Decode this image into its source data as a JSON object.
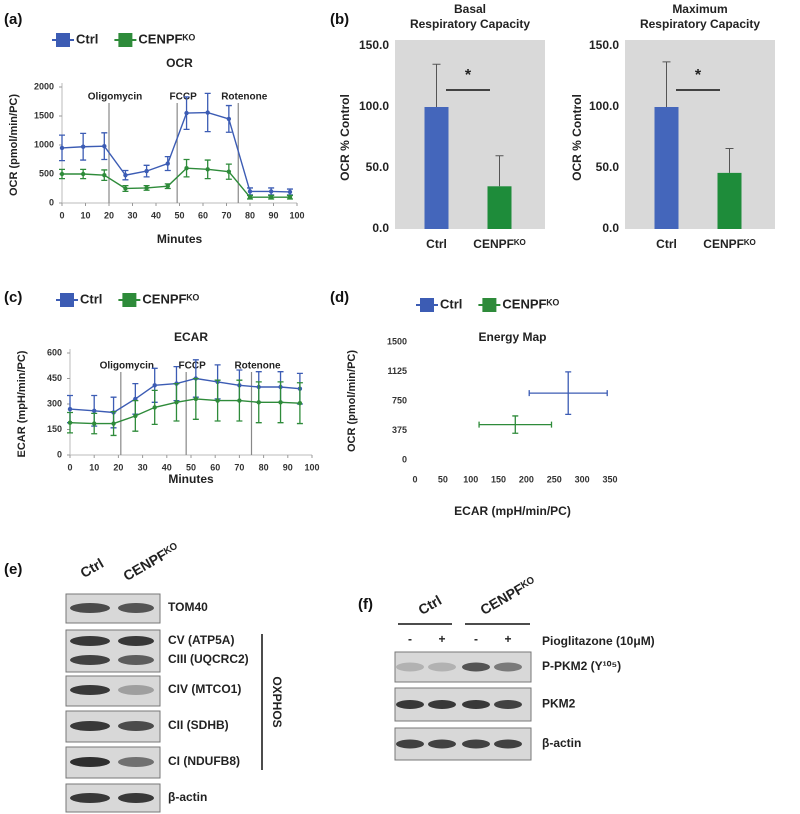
{
  "panels": [
    "(a)",
    "(b)",
    "(c)",
    "(d)",
    "(e)",
    "(f)"
  ],
  "chart_data": [
    {
      "type": "line",
      "title": "OCR",
      "xlabel": "Minutes",
      "ylabel": "OCR (pmol/min/PC)",
      "x": [
        0,
        9,
        18,
        27,
        36,
        45,
        53,
        62,
        71,
        80,
        89,
        97
      ],
      "xlim": [
        0,
        100
      ],
      "xticks": [
        0,
        10,
        20,
        30,
        40,
        50,
        60,
        70,
        80,
        90,
        100
      ],
      "ylim": [
        0,
        2000
      ],
      "yticks": [
        0,
        500,
        1000,
        1500,
        2000
      ],
      "annotations": [
        {
          "text": "Oligomycin",
          "x": 20
        },
        {
          "text": "FCCP",
          "x": 49
        },
        {
          "text": "Rotenone",
          "x": 75
        }
      ],
      "series": [
        {
          "name": "Ctrl",
          "color": "#3c5cb4",
          "values": [
            950,
            970,
            980,
            480,
            550,
            680,
            1550,
            1560,
            1450,
            200,
            200,
            190
          ],
          "errors": [
            220,
            230,
            230,
            80,
            100,
            120,
            280,
            330,
            230,
            60,
            60,
            50
          ]
        },
        {
          "name": "CENPFᴷᴼ",
          "color": "#2e8b3a",
          "values": [
            500,
            500,
            480,
            250,
            260,
            290,
            600,
            580,
            540,
            100,
            100,
            100
          ],
          "errors": [
            80,
            80,
            90,
            50,
            40,
            40,
            150,
            160,
            130,
            30,
            30,
            30
          ]
        }
      ]
    },
    {
      "type": "bar",
      "title": [
        "Basal",
        "Respiratory Capacity"
      ],
      "ylabel": "OCR % Control",
      "categories": [
        "Ctrl",
        "CENPFᴷᴼ"
      ],
      "values": [
        100,
        35
      ],
      "errors": [
        35,
        25
      ],
      "colors": [
        "#4466bb",
        "#1e8c3a"
      ],
      "ylim": [
        0,
        150
      ],
      "yticks": [
        {
          "value": 0,
          "label": "0.0"
        },
        {
          "value": 50,
          "label": "50.0"
        },
        {
          "value": 100,
          "label": "100.0"
        },
        {
          "value": 150,
          "label": "150.0"
        }
      ],
      "annotations": [
        {
          "text": "*"
        }
      ]
    },
    {
      "type": "bar",
      "title": [
        "Maximum",
        "Respiratory Capacity"
      ],
      "ylabel": "OCR % Control",
      "categories": [
        "Ctrl",
        "CENPFᴷᴼ"
      ],
      "values": [
        100,
        46
      ],
      "errors": [
        37,
        20
      ],
      "colors": [
        "#4466bb",
        "#1e8c3a"
      ],
      "ylim": [
        0,
        150
      ],
      "yticks": [
        {
          "value": 0,
          "label": "0.0"
        },
        {
          "value": 50,
          "label": "50.0"
        },
        {
          "value": 100,
          "label": "100.0"
        },
        {
          "value": 150,
          "label": "150.0"
        }
      ],
      "annotations": [
        {
          "text": "*"
        }
      ]
    },
    {
      "type": "line",
      "title": "ECAR",
      "xlabel": "Minutes",
      "ylabel": "ECAR (mpH/min/PC)",
      "x": [
        0,
        10,
        18,
        27,
        35,
        44,
        52,
        61,
        70,
        78,
        87,
        95
      ],
      "xlim": [
        0,
        100
      ],
      "xticks": [
        0,
        10,
        20,
        30,
        40,
        50,
        60,
        70,
        80,
        90,
        100
      ],
      "ylim": [
        0,
        600
      ],
      "yticks": [
        0,
        150,
        300,
        450,
        600
      ],
      "annotations": [
        {
          "text": "Oligomycin",
          "x": 21
        },
        {
          "text": "FCCP",
          "x": 48
        },
        {
          "text": "Rotenone",
          "x": 75
        }
      ],
      "series": [
        {
          "name": "Ctrl",
          "color": "#3c5cb4",
          "values": [
            270,
            260,
            250,
            330,
            410,
            420,
            450,
            430,
            410,
            400,
            400,
            390
          ],
          "errors": [
            80,
            90,
            90,
            90,
            100,
            100,
            110,
            100,
            90,
            90,
            90,
            90
          ]
        },
        {
          "name": "CENPFᴷᴼ",
          "color": "#2e8b3a",
          "values": [
            190,
            185,
            185,
            230,
            280,
            310,
            330,
            320,
            320,
            310,
            310,
            305
          ],
          "errors": [
            60,
            60,
            70,
            90,
            100,
            110,
            120,
            120,
            120,
            120,
            120,
            120
          ]
        }
      ]
    },
    {
      "type": "scatter",
      "title": "Energy Map",
      "xlabel": "ECAR (mpH/min/PC)",
      "ylabel": "OCR (pmol/min/PC)",
      "xlim": [
        0,
        350
      ],
      "xticks": [
        0,
        50,
        100,
        150,
        200,
        250,
        300,
        350
      ],
      "ylim": [
        0,
        1500
      ],
      "yticks": [
        0,
        375,
        750,
        1125,
        1500
      ],
      "series": [
        {
          "name": "Ctrl",
          "color": "#3c5cb4",
          "x": [
            275
          ],
          "xerr": [
            70
          ],
          "values": [
            850
          ],
          "errors": [
            270
          ]
        },
        {
          "name": "CENPFᴷᴼ",
          "color": "#2e8b3a",
          "x": [
            180
          ],
          "xerr": [
            65
          ],
          "values": [
            450
          ],
          "errors": [
            110
          ]
        }
      ]
    }
  ],
  "blots": {
    "e": {
      "columns": [
        "Ctrl",
        "CENPFᴷᴼ"
      ],
      "bands": [
        "TOM40",
        "CV (ATP5A)",
        "CIII (UQCRC2)",
        "CIV (MTCO1)",
        "CII (SDHB)",
        "CI (NDUFB8)",
        "β-actin"
      ],
      "group": "OXPHOS"
    },
    "f": {
      "groups": [
        "Ctrl",
        "CENPFᴷᴼ"
      ],
      "treatment": "Pioglitazone (10μM)",
      "signs": [
        "-",
        "+",
        "-",
        "+"
      ],
      "bands": [
        "P-PKM2 (Y¹⁰⁵)",
        "PKM2",
        "β-actin"
      ]
    }
  }
}
